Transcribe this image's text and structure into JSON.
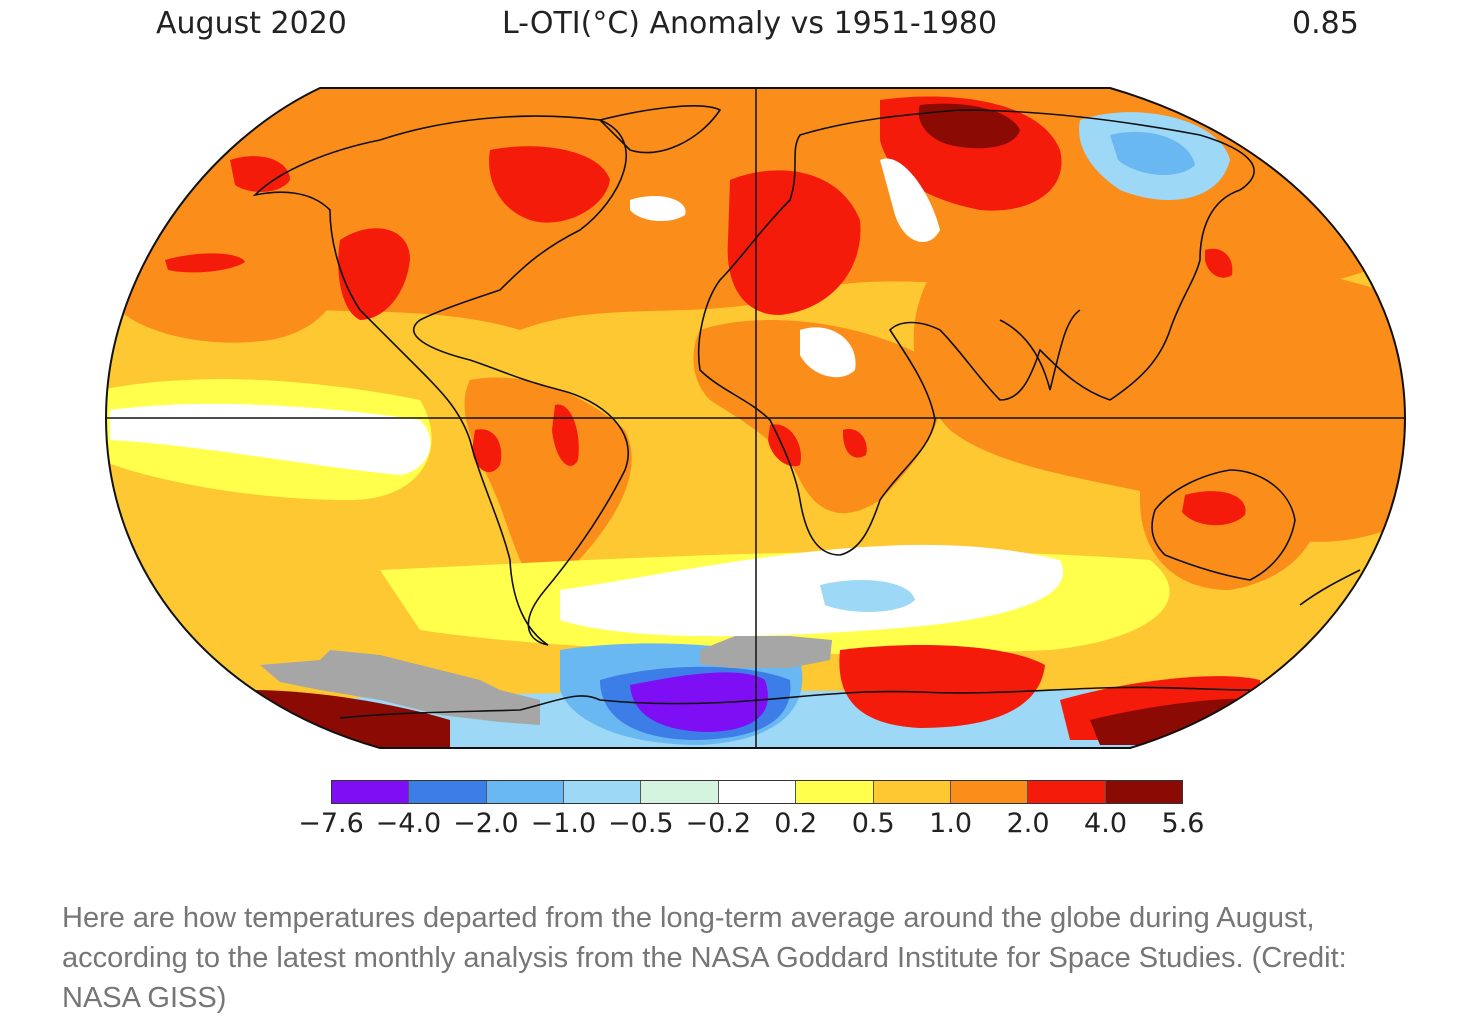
{
  "header": {
    "date": "August 2020",
    "title": "L-OTI(°C) Anomaly vs 1951-1980",
    "global_mean": "0.85"
  },
  "legend": {
    "ticks": [
      "−7.6",
      "−4.0",
      "−2.0",
      "−1.0",
      "−0.5",
      "−0.2",
      "0.2",
      "0.5",
      "1.0",
      "2.0",
      "4.0",
      "5.6"
    ],
    "colors": [
      "#7e0ff4",
      "#3d7de8",
      "#6ab8f1",
      "#9dd8f6",
      "#d4f4df",
      "#ffffff",
      "#ffff4c",
      "#fdc831",
      "#fb8d1b",
      "#f41b0b",
      "#8c0a04"
    ]
  },
  "map": {
    "projection": "robinson-like",
    "palette": {
      "ocean_base": "#fdc831",
      "warm": "#fb8d1b",
      "hot": "#f41b0b",
      "extreme": "#8c0a04",
      "mild": "#ffff4c",
      "neutral": "#ffffff",
      "cool": "#9dd8f6",
      "cold": "#6ab8f1",
      "colder": "#3d7de8",
      "coldest": "#7e0ff4",
      "no_data": "#a6a6a6"
    }
  },
  "caption": "Here are how temperatures departed from the long-term average around the globe during August, according to the latest monthly analysis from the NASA Goddard Institute for Space Studies. (Credit: NASA GISS)"
}
